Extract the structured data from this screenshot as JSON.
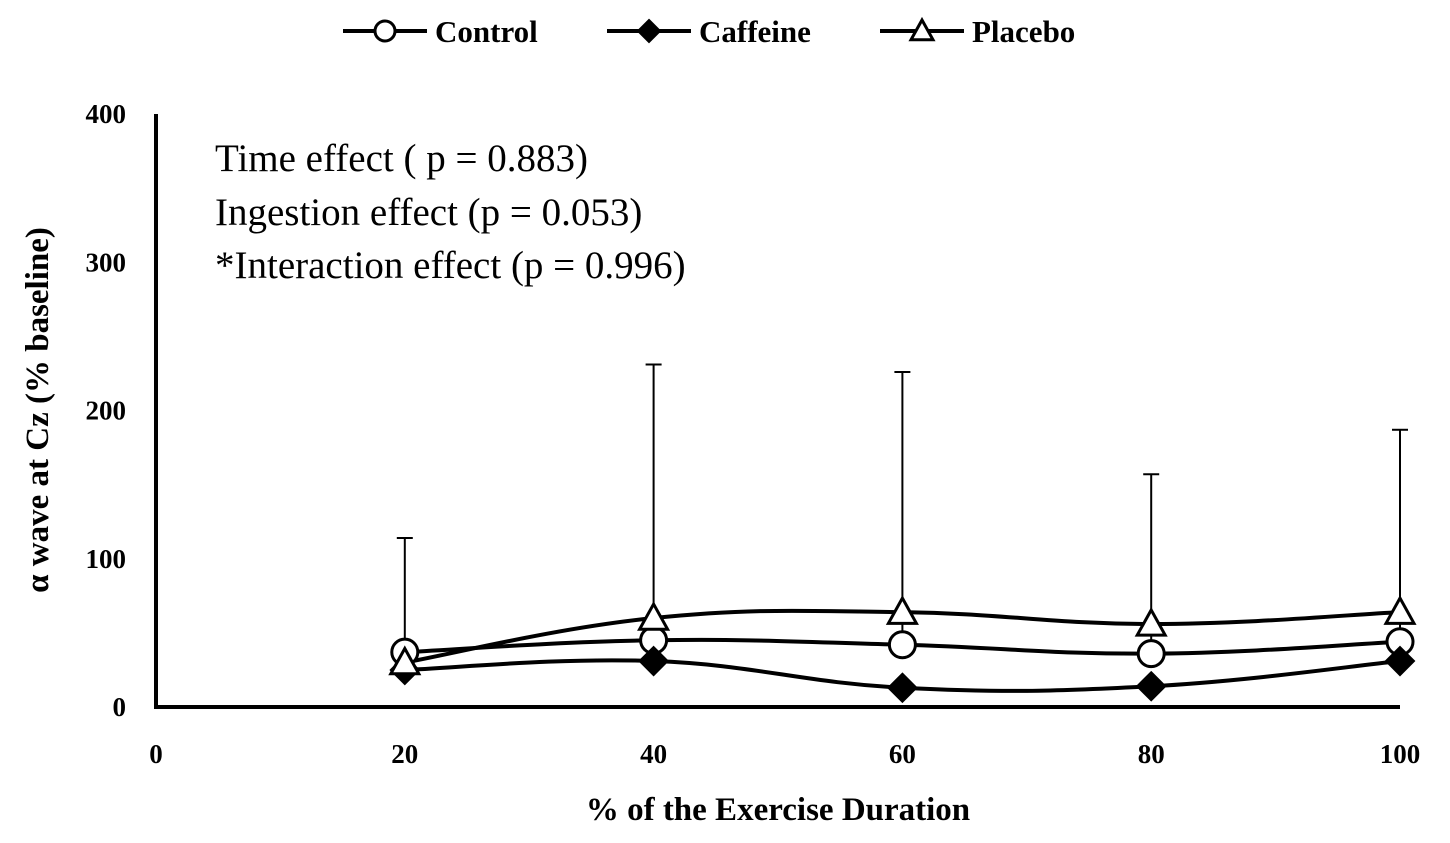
{
  "chart_data": {
    "type": "line",
    "title": "",
    "xlabel": "% of the Exercise Duration",
    "ylabel": "α wave at Cz (% baseline)",
    "xlim": [
      0,
      100
    ],
    "ylim": [
      0,
      400
    ],
    "xticks": [
      0,
      20,
      40,
      60,
      80,
      100
    ],
    "yticks": [
      0,
      100,
      200,
      300,
      400
    ],
    "x": [
      20,
      40,
      60,
      80,
      100
    ],
    "grid": false,
    "legend_position": "top-center",
    "series": [
      {
        "name": "Control",
        "marker": "circle-open",
        "values": [
          37,
          45,
          42,
          36,
          44
        ],
        "error_upper": [
          77,
          186,
          184,
          121,
          143
        ]
      },
      {
        "name": "Caffeine",
        "marker": "diamond-filled",
        "values": [
          25,
          31,
          13,
          14,
          31
        ],
        "error_upper": [
          10,
          10,
          0,
          0,
          0
        ]
      },
      {
        "name": "Placebo",
        "marker": "triangle-open",
        "values": [
          30,
          60,
          64,
          56,
          64
        ],
        "error_upper": [
          5,
          0,
          0,
          0,
          0
        ]
      }
    ],
    "annotations": [
      "Time effect ( p = 0.883)",
      "Ingestion effect (p = 0.053)",
      "*Interaction effect (p = 0.996)"
    ]
  }
}
